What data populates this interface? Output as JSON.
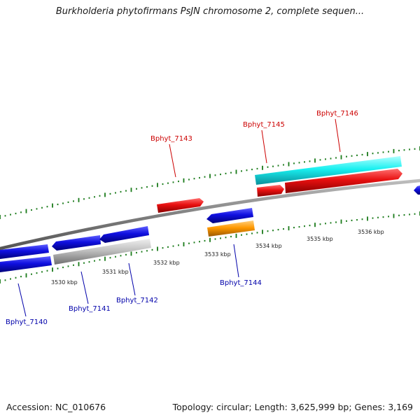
{
  "title": "Burkholderia phytofirmans PsJN chromosome 2, complete sequen...",
  "accession": "Accession: NC_010676",
  "topology": "Topology: circular; Length: 3,625,999 bp; Genes: 3,169",
  "colors": {
    "backbone": "#808080",
    "ticks": "#1a7a1a",
    "label_red": "#cc0000",
    "label_blue": "#0000aa",
    "gene_blue": "#1010e0",
    "gene_red": "#e81010",
    "gene_cyan": "#19f0f0",
    "gene_orange": "#ff9900",
    "gene_gray": "#c0c0c0"
  },
  "kbp_ticks": [
    {
      "label": "3530 kbp"
    },
    {
      "label": "3531 kbp"
    },
    {
      "label": "3532 kbp"
    },
    {
      "label": "3533 kbp"
    },
    {
      "label": "3534 kbp"
    },
    {
      "label": "3535 kbp"
    },
    {
      "label": "3536 kbp"
    }
  ],
  "gene_labels": [
    {
      "name": "Bphyt_7140",
      "color": "label_blue"
    },
    {
      "name": "Bphyt_7141",
      "color": "label_blue"
    },
    {
      "name": "Bphyt_7142",
      "color": "label_blue"
    },
    {
      "name": "Bphyt_7143",
      "color": "label_red"
    },
    {
      "name": "Bphyt_7144",
      "color": "label_blue"
    },
    {
      "name": "Bphyt_7145",
      "color": "label_red"
    },
    {
      "name": "Bphyt_7146",
      "color": "label_red"
    }
  ]
}
